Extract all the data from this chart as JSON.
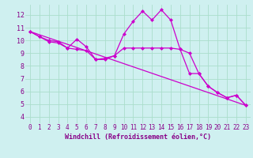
{
  "xlabel": "Windchill (Refroidissement éolien,°C)",
  "background_color": "#cff0f0",
  "line_color": "#cc00cc",
  "grid_color": "#aaddcc",
  "xlim": [
    -0.5,
    23.5
  ],
  "ylim": [
    3.5,
    12.8
  ],
  "yticks": [
    4,
    5,
    6,
    7,
    8,
    9,
    10,
    11,
    12
  ],
  "xticks": [
    0,
    1,
    2,
    3,
    4,
    5,
    6,
    7,
    8,
    9,
    10,
    11,
    12,
    13,
    14,
    15,
    16,
    17,
    18,
    19,
    20,
    21,
    22,
    23
  ],
  "series1_x": [
    0,
    1,
    2,
    3,
    4,
    5,
    6,
    7,
    8,
    9,
    10,
    11,
    12,
    13,
    14,
    15,
    16,
    17,
    18,
    19,
    20,
    21,
    22,
    23
  ],
  "series1_y": [
    10.7,
    10.3,
    10.0,
    9.9,
    9.4,
    10.1,
    9.5,
    8.5,
    8.6,
    8.8,
    10.5,
    11.5,
    12.3,
    11.6,
    12.4,
    11.6,
    9.3,
    9.0,
    7.4,
    6.4,
    5.9,
    5.5,
    5.7,
    4.9
  ],
  "series2_x": [
    0,
    1,
    2,
    3,
    4,
    5,
    6,
    7,
    8,
    9,
    10,
    11,
    12,
    13,
    14,
    15,
    16,
    17,
    18,
    19,
    20,
    21,
    22,
    23
  ],
  "series2_y": [
    10.7,
    10.3,
    9.9,
    9.8,
    9.4,
    9.3,
    9.2,
    8.5,
    8.5,
    8.8,
    9.4,
    9.4,
    9.4,
    9.4,
    9.4,
    9.4,
    9.3,
    7.4,
    7.4,
    6.4,
    5.9,
    5.5,
    5.7,
    4.9
  ],
  "series3_x": [
    0,
    23
  ],
  "series3_y": [
    10.7,
    4.9
  ],
  "tick_color": "#880088",
  "tick_fontsize": 5.5,
  "xlabel_fontsize": 6.0,
  "markersize": 2.5
}
